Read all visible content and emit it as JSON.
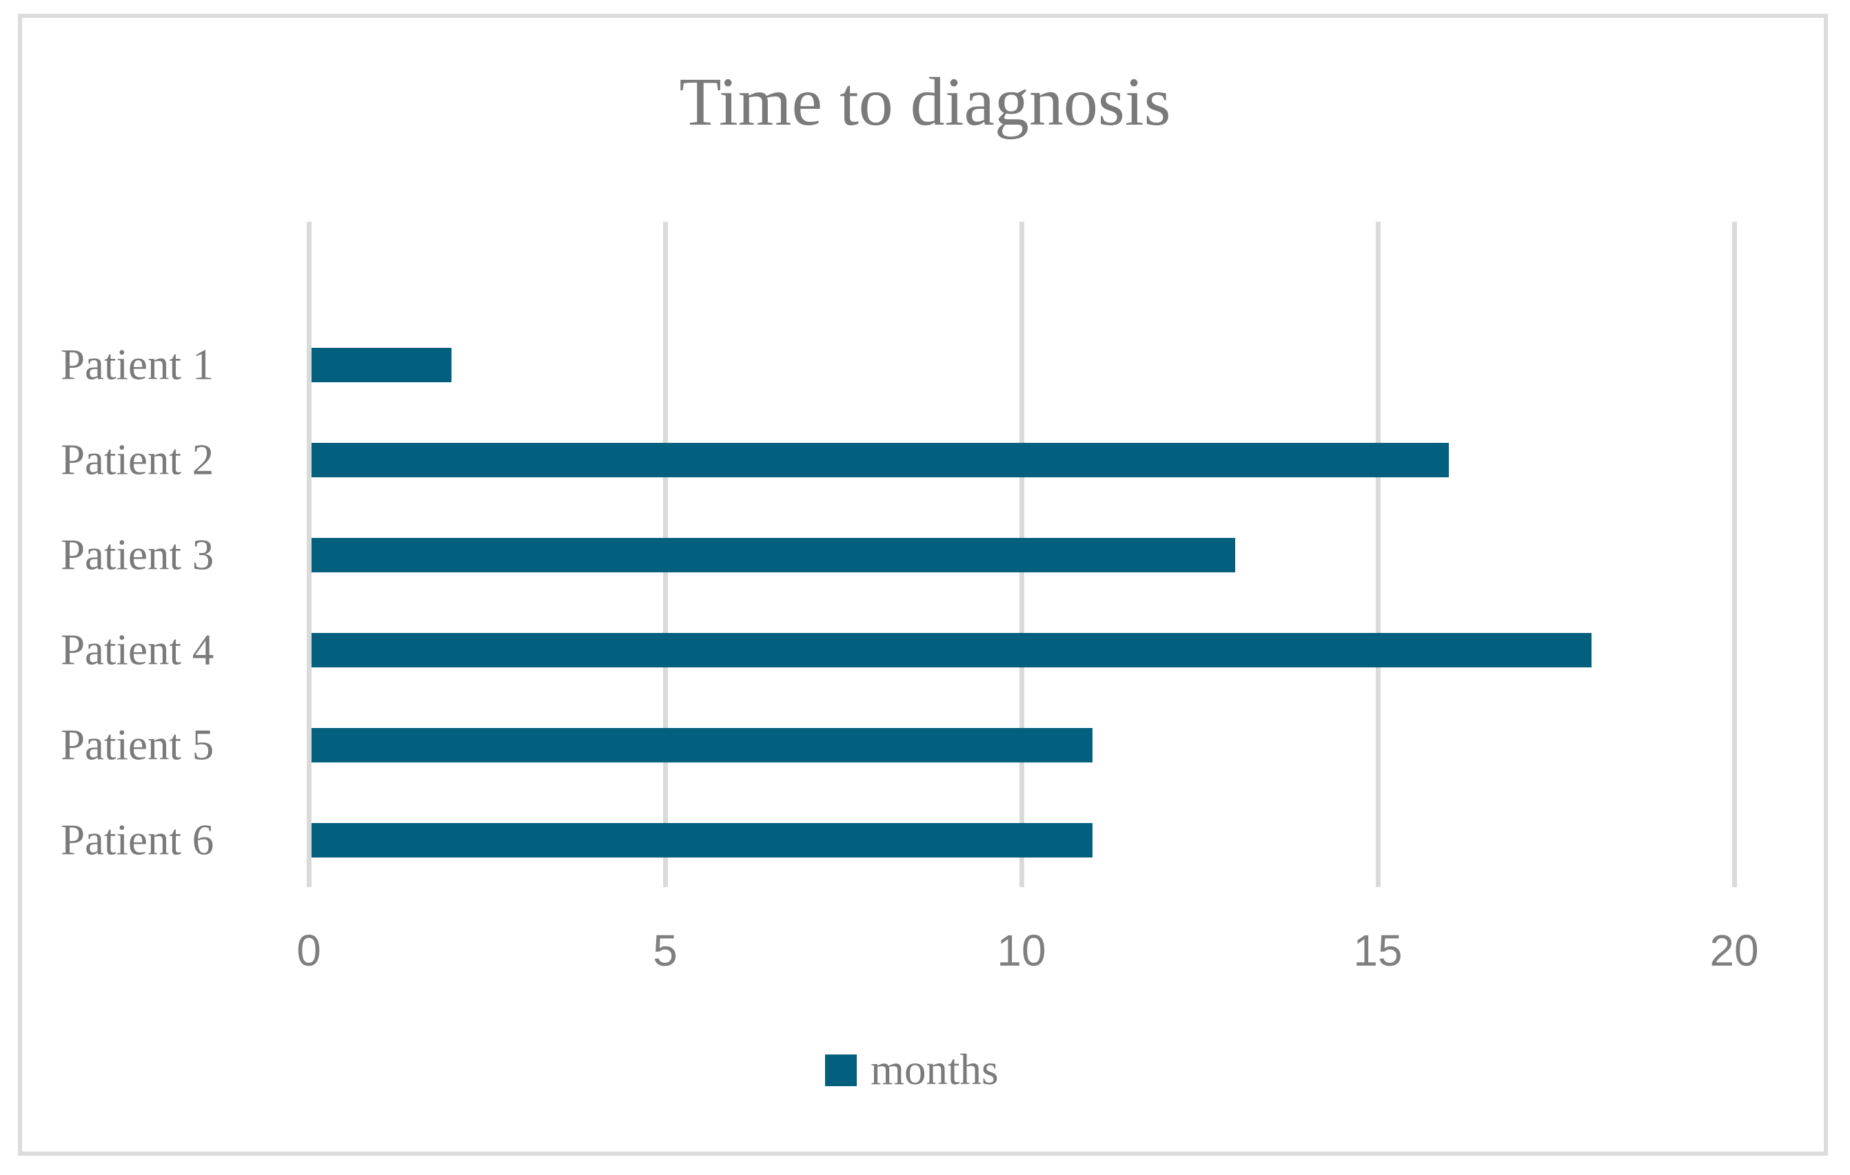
{
  "chart_data": {
    "type": "bar",
    "orientation": "horizontal",
    "title": "Time to diagnosis",
    "categories": [
      "Patient 1",
      "Patient 2",
      "Patient 3",
      "Patient 4",
      "Patient 5",
      "Patient 6"
    ],
    "series": [
      {
        "name": "months",
        "values": [
          2,
          16,
          13,
          18,
          11,
          11
        ]
      }
    ],
    "xlabel": "",
    "ylabel": "",
    "xlim": [
      0,
      20
    ],
    "x_ticks": [
      0,
      5,
      10,
      15,
      20
    ],
    "grid": true,
    "legend_position": "bottom",
    "colors": {
      "bar": "#025F7D",
      "text": "#7A7A7A",
      "tick_text": "#7F7F7F",
      "gridline": "#DADADA",
      "frame_border": "#DCDCDC",
      "background": "#FFFFFF"
    }
  }
}
